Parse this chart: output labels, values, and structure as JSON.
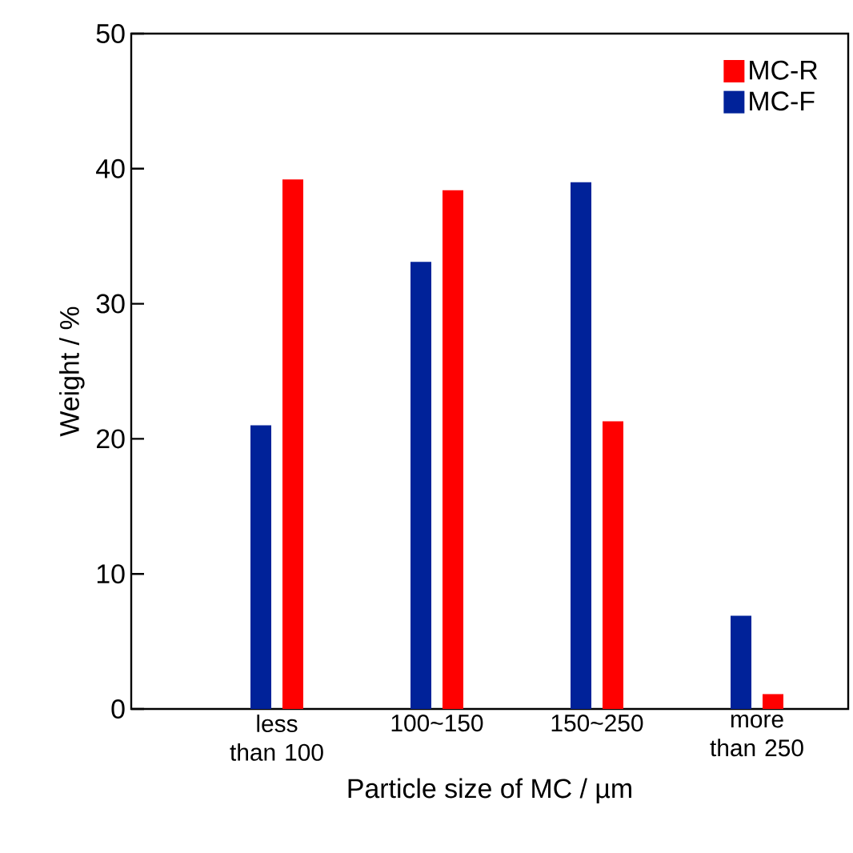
{
  "chart_data": {
    "type": "bar",
    "xlabel": "Particle size of MC / µm",
    "ylabel": "Weight / %",
    "categories": [
      "less than 100",
      "100~150",
      "150~250",
      "more than 250"
    ],
    "series": [
      {
        "name": "MC-F",
        "color": "#002299",
        "values": [
          21.0,
          33.1,
          39.0,
          6.9
        ]
      },
      {
        "name": "MC-R",
        "color": "#ff0000",
        "values": [
          39.2,
          38.4,
          21.3,
          1.1
        ]
      }
    ],
    "ylim": [
      0,
      50
    ],
    "yticks": [
      0,
      10,
      20,
      30,
      40,
      50
    ],
    "grid": false,
    "legend": "top right"
  }
}
